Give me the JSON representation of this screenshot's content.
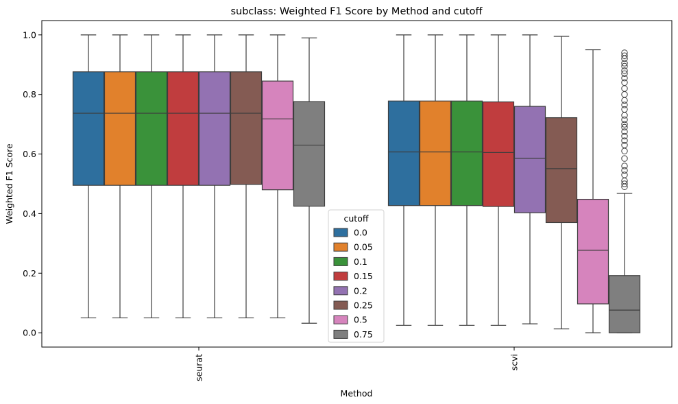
{
  "chart_data": {
    "type": "box",
    "title": "subclass: Weighted F1 Score by Method and cutoff",
    "xlabel": "Method",
    "ylabel": "Weighted F1 Score",
    "ylim": [
      -0.048,
      1.048
    ],
    "yticks": [
      0.0,
      0.2,
      0.4,
      0.6,
      0.8,
      1.0
    ],
    "ytick_labels": [
      "0.0",
      "0.2",
      "0.4",
      "0.6",
      "0.8",
      "1.0"
    ],
    "categories": [
      "seurat",
      "scvi"
    ],
    "legend": {
      "title": "cutoff",
      "placement": "lower center"
    },
    "series": [
      {
        "name": "0.0",
        "color": "#2e6f9e",
        "boxes": [
          {
            "whisker_low": 0.05,
            "q1": 0.495,
            "median": 0.737,
            "q3": 0.876,
            "whisker_high": 1.0
          },
          {
            "whisker_low": 0.025,
            "q1": 0.427,
            "median": 0.607,
            "q3": 0.778,
            "whisker_high": 1.0
          }
        ]
      },
      {
        "name": "0.05",
        "color": "#e1812c",
        "boxes": [
          {
            "whisker_low": 0.05,
            "q1": 0.495,
            "median": 0.737,
            "q3": 0.876,
            "whisker_high": 1.0
          },
          {
            "whisker_low": 0.025,
            "q1": 0.427,
            "median": 0.607,
            "q3": 0.778,
            "whisker_high": 1.0
          }
        ]
      },
      {
        "name": "0.1",
        "color": "#3a923a",
        "boxes": [
          {
            "whisker_low": 0.05,
            "q1": 0.495,
            "median": 0.737,
            "q3": 0.876,
            "whisker_high": 1.0
          },
          {
            "whisker_low": 0.025,
            "q1": 0.427,
            "median": 0.607,
            "q3": 0.778,
            "whisker_high": 1.0
          }
        ]
      },
      {
        "name": "0.15",
        "color": "#c03d3e",
        "boxes": [
          {
            "whisker_low": 0.05,
            "q1": 0.495,
            "median": 0.737,
            "q3": 0.876,
            "whisker_high": 1.0
          },
          {
            "whisker_low": 0.025,
            "q1": 0.424,
            "median": 0.605,
            "q3": 0.775,
            "whisker_high": 1.0
          }
        ]
      },
      {
        "name": "0.2",
        "color": "#9372b2",
        "boxes": [
          {
            "whisker_low": 0.05,
            "q1": 0.495,
            "median": 0.737,
            "q3": 0.876,
            "whisker_high": 1.0
          },
          {
            "whisker_low": 0.03,
            "q1": 0.403,
            "median": 0.586,
            "q3": 0.76,
            "whisker_high": 1.0
          }
        ]
      },
      {
        "name": "0.25",
        "color": "#845b53",
        "boxes": [
          {
            "whisker_low": 0.05,
            "q1": 0.498,
            "median": 0.737,
            "q3": 0.876,
            "whisker_high": 1.0
          },
          {
            "whisker_low": 0.013,
            "q1": 0.37,
            "median": 0.551,
            "q3": 0.722,
            "whisker_high": 0.995
          }
        ]
      },
      {
        "name": "0.5",
        "color": "#d684bd",
        "boxes": [
          {
            "whisker_low": 0.05,
            "q1": 0.48,
            "median": 0.718,
            "q3": 0.845,
            "whisker_high": 1.0
          },
          {
            "whisker_low": 0.0,
            "q1": 0.097,
            "median": 0.277,
            "q3": 0.448,
            "whisker_high": 0.95
          }
        ]
      },
      {
        "name": "0.75",
        "color": "#7f7f7f",
        "boxes": [
          {
            "whisker_low": 0.032,
            "q1": 0.425,
            "median": 0.63,
            "q3": 0.776,
            "whisker_high": 0.99
          },
          {
            "whisker_low": 0.0,
            "q1": 0.0,
            "median": 0.076,
            "q3": 0.192,
            "whisker_high": 0.468,
            "outliers": [
              0.49,
              0.5,
              0.51,
              0.53,
              0.545,
              0.56,
              0.585,
              0.61,
              0.63,
              0.645,
              0.66,
              0.675,
              0.69,
              0.7,
              0.715,
              0.73,
              0.75,
              0.765,
              0.78,
              0.8,
              0.82,
              0.84,
              0.855,
              0.87,
              0.88,
              0.895,
              0.905,
              0.92,
              0.93,
              0.94
            ]
          }
        ]
      }
    ]
  }
}
